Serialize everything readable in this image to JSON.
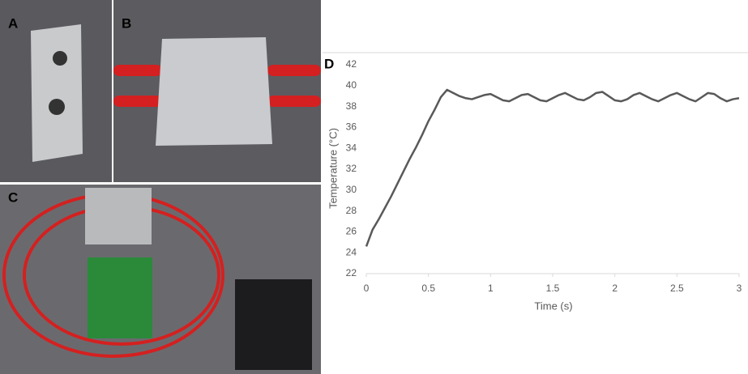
{
  "panel_labels": [
    "A",
    "B",
    "C"
  ],
  "chart_data": {
    "type": "line",
    "panel_label": "D",
    "xlabel": "Time (s)",
    "ylabel": "Temperature (°C)",
    "x": [
      0,
      0.05,
      0.1,
      0.15,
      0.2,
      0.25,
      0.3,
      0.35,
      0.4,
      0.45,
      0.5,
      0.55,
      0.6,
      0.65,
      0.7,
      0.75,
      0.8,
      0.85,
      0.9,
      0.95,
      1.0,
      1.05,
      1.1,
      1.15,
      1.2,
      1.25,
      1.3,
      1.35,
      1.4,
      1.45,
      1.5,
      1.55,
      1.6,
      1.65,
      1.7,
      1.75,
      1.8,
      1.85,
      1.9,
      1.95,
      2.0,
      2.05,
      2.1,
      2.15,
      2.2,
      2.25,
      2.3,
      2.35,
      2.4,
      2.45,
      2.5,
      2.55,
      2.6,
      2.65,
      2.7,
      2.75,
      2.8,
      2.85,
      2.9,
      2.95,
      3.0
    ],
    "values": [
      24.6,
      26.2,
      27.2,
      28.3,
      29.4,
      30.6,
      31.8,
      33.0,
      34.1,
      35.3,
      36.6,
      37.7,
      38.9,
      39.6,
      39.3,
      39.0,
      38.8,
      38.7,
      38.9,
      39.1,
      39.2,
      38.9,
      38.6,
      38.5,
      38.8,
      39.1,
      39.2,
      38.9,
      38.6,
      38.5,
      38.8,
      39.1,
      39.3,
      39.0,
      38.7,
      38.6,
      38.9,
      39.3,
      39.4,
      39.0,
      38.6,
      38.5,
      38.7,
      39.1,
      39.3,
      39.0,
      38.7,
      38.5,
      38.8,
      39.1,
      39.3,
      39.0,
      38.7,
      38.5,
      38.9,
      39.3,
      39.2,
      38.8,
      38.5,
      38.7,
      38.8
    ],
    "color": "#595959",
    "xlim": [
      0,
      3
    ],
    "xticks": [
      0,
      0.5,
      1,
      1.5,
      2,
      2.5,
      3
    ],
    "ylim": [
      22,
      42
    ],
    "yticks": [
      22,
      24,
      26,
      28,
      30,
      32,
      34,
      36,
      38,
      40,
      42
    ]
  }
}
